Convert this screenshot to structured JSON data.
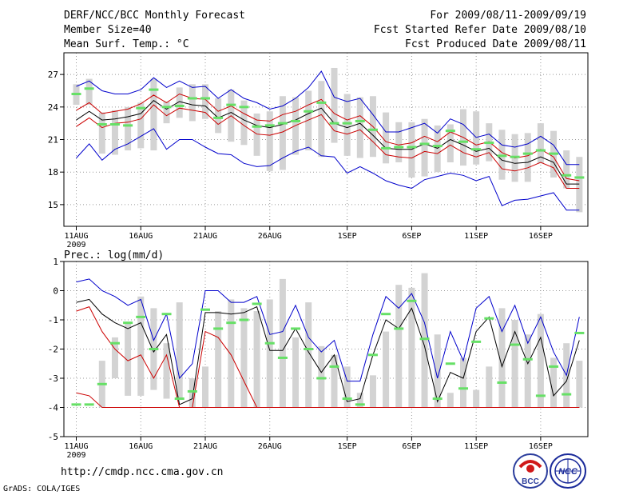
{
  "header": {
    "title": "DERF/NCC/BCC Monthly Forecast",
    "member_size": "Member Size=40",
    "variable": "Mean Surf. Temp.: °C",
    "period": "For 2009/08/11-2009/09/19",
    "started": "Fcst Started Refer Date 2009/08/10",
    "produced": "Fcst Produced Date 2009/08/11"
  },
  "footer": {
    "url": "http://cmdp.ncc.cma.gov.cn",
    "credit": "GrADS: COLA/IGES",
    "logo_left": "BCC",
    "logo_right": "NCC"
  },
  "colors": {
    "box": "#d3d3d3",
    "green": "#66e066",
    "blue": "#0000cc",
    "red": "#cc0000",
    "black": "#000000",
    "grid": "#999999"
  },
  "chart_data": [
    {
      "type": "box",
      "title": "Mean Surf. Temp.: °C",
      "xlabel": "",
      "ylabel": "°C",
      "ylim": [
        13,
        29
      ],
      "yticks": [
        15,
        18,
        21,
        24,
        27
      ],
      "x_ticks": [
        {
          "day": 0,
          "label": "11AUG",
          "sub": "2009"
        },
        {
          "day": 5,
          "label": "16AUG"
        },
        {
          "day": 10,
          "label": "21AUG"
        },
        {
          "day": 15,
          "label": "26AUG"
        },
        {
          "day": 21,
          "label": "1SEP"
        },
        {
          "day": 26,
          "label": "6SEP"
        },
        {
          "day": 31,
          "label": "11SEP"
        },
        {
          "day": 36,
          "label": "16SEP"
        }
      ],
      "box_low": [
        24.2,
        24.2,
        19.7,
        19.6,
        20,
        20.2,
        20,
        22.5,
        23,
        22.7,
        22.9,
        21.6,
        20.8,
        20.5,
        19.5,
        18.1,
        18.2,
        19.6,
        20,
        19.4,
        20.7,
        19.5,
        19.3,
        19.4,
        18.8,
        18.9,
        17.5,
        17.6,
        18,
        18.9,
        18.6,
        18.7,
        19,
        17.3,
        17.1,
        17.1,
        18.8,
        17.5,
        16.5,
        14.3
      ],
      "box_high": [
        26.1,
        26.6,
        23.5,
        23.7,
        24,
        24.4,
        26.6,
        24.5,
        25.8,
        26.1,
        26.1,
        24.8,
        25.6,
        24.6,
        23.4,
        23.6,
        25,
        24.9,
        25.5,
        26.4,
        27.6,
        25.2,
        24.9,
        25,
        23.5,
        22.6,
        22.6,
        22.9,
        22.3,
        22.4,
        23.8,
        23.6,
        22.5,
        21.9,
        21.5,
        21.6,
        22.5,
        21.8,
        20,
        19.4
      ],
      "green": [
        25.2,
        25.7,
        22.4,
        22.4,
        22.3,
        23.9,
        25.6,
        24,
        24.1,
        24.8,
        24.8,
        23,
        24.2,
        24,
        22.2,
        22.3,
        22.5,
        22.7,
        23.6,
        24.4,
        22.5,
        22.5,
        22.7,
        21.9,
        20.2,
        20.3,
        20.3,
        20.6,
        20.4,
        21.8,
        20.8,
        20.1,
        20.7,
        19.5,
        19.4,
        19.7,
        20,
        19.7,
        17.7,
        17.5
      ],
      "series": [
        {
          "name": "max",
          "color": "blue",
          "values": [
            25.9,
            26.4,
            25.5,
            25.2,
            25.2,
            25.6,
            26.7,
            25.8,
            26.4,
            25.8,
            25.9,
            24.8,
            25.6,
            24.8,
            24.4,
            23.8,
            24.1,
            24.8,
            25.8,
            27.3,
            24.9,
            24.5,
            24.8,
            23.3,
            21.7,
            21.7,
            22.1,
            22.5,
            21.6,
            22.9,
            22.4,
            21.2,
            21.5,
            20.5,
            20.3,
            20.6,
            21.3,
            20.5,
            18.7,
            18.7
          ]
        },
        {
          "name": "p90",
          "color": "red",
          "values": [
            23.7,
            24.4,
            23.4,
            23.6,
            23.8,
            24.3,
            25.1,
            24.4,
            25.2,
            24.8,
            24.7,
            23.6,
            24.1,
            23.4,
            22.8,
            22.7,
            23.3,
            23.6,
            24.2,
            24.7,
            23.4,
            22.8,
            23.2,
            22.2,
            20.8,
            20.5,
            20.7,
            21.3,
            20.8,
            21.7,
            21.2,
            20.5,
            20.8,
            19.8,
            19.3,
            19.5,
            20.1,
            19.4,
            17.4,
            17.2
          ]
        },
        {
          "name": "mean",
          "color": "black",
          "values": [
            22.8,
            23.6,
            22.8,
            22.9,
            23.1,
            23.4,
            24.6,
            23.8,
            24.5,
            24.2,
            24.1,
            23,
            23.5,
            22.8,
            22.3,
            22.1,
            22.4,
            22.8,
            23.4,
            23.9,
            22.5,
            22.1,
            22.5,
            21.4,
            20.2,
            20.1,
            20.1,
            20.6,
            20.2,
            21,
            20.5,
            19.9,
            20.2,
            19.1,
            18.8,
            18.9,
            19.4,
            18.9,
            16.9,
            16.9
          ]
        },
        {
          "name": "p10",
          "color": "red",
          "values": [
            22.2,
            23,
            22.1,
            22.5,
            22.6,
            22.9,
            24.2,
            23.2,
            23.9,
            23.7,
            23.5,
            22.4,
            23.2,
            22.3,
            21.5,
            21.4,
            21.7,
            22.3,
            22.8,
            23.3,
            21.8,
            21.5,
            21.9,
            20.8,
            19.6,
            19.4,
            19.3,
            19.9,
            19.7,
            20.5,
            19.8,
            19.4,
            19.8,
            18.3,
            18.1,
            18.4,
            18.9,
            18.4,
            16.5,
            16.5
          ]
        },
        {
          "name": "min",
          "color": "blue",
          "values": [
            19.3,
            20.6,
            19.1,
            20.1,
            20.6,
            21.3,
            22,
            20.1,
            21,
            21,
            20.3,
            19.7,
            19.6,
            18.8,
            18.5,
            18.6,
            19.3,
            19.9,
            20.3,
            19.5,
            19.4,
            17.9,
            18.5,
            17.9,
            17.2,
            16.8,
            16.5,
            17.3,
            17.6,
            17.9,
            17.7,
            17.2,
            17.6,
            14.9,
            15.4,
            15.5,
            15.8,
            16.1,
            14.5,
            14.5
          ]
        }
      ]
    },
    {
      "type": "box",
      "title": "Prec.: log(mm/d)",
      "xlabel": "",
      "ylabel": "log(mm/d)",
      "ylim": [
        -5,
        1
      ],
      "yticks": [
        -5,
        -4,
        -3,
        -2,
        -1,
        0,
        1
      ],
      "x_ticks": [
        {
          "day": 0,
          "label": "11AUG",
          "sub": "2009"
        },
        {
          "day": 5,
          "label": "16AUG"
        },
        {
          "day": 10,
          "label": "21AUG"
        },
        {
          "day": 15,
          "label": "26AUG"
        },
        {
          "day": 21,
          "label": "1SEP"
        },
        {
          "day": 26,
          "label": "6SEP"
        },
        {
          "day": 31,
          "label": "11SEP"
        },
        {
          "day": 36,
          "label": "16SEP"
        }
      ],
      "box_low": [
        -4,
        -4,
        -4,
        -3,
        -3.6,
        -3.6,
        -3.4,
        -3.7,
        -3.7,
        -4,
        -4,
        -4,
        -4,
        -4,
        -4,
        -4,
        -4,
        -4,
        -4,
        -4,
        -4,
        -4,
        -4,
        -4,
        -4,
        -4,
        -4,
        -4,
        -4,
        -4,
        -4,
        -4,
        -4,
        -4,
        -4,
        -4,
        -4,
        -4,
        -4,
        -4
      ],
      "box_high": [
        -4,
        -4,
        -2.4,
        -1.6,
        -1.1,
        -0.2,
        -0.6,
        -1.8,
        -0.4,
        -3,
        -2.6,
        -0.7,
        -0.3,
        -0.6,
        -0.7,
        -0.3,
        0.4,
        -1.6,
        -0.4,
        -1.9,
        -2.2,
        -2.6,
        -3.5,
        -2.9,
        -1.4,
        0.2,
        0.1,
        0.6,
        -1.5,
        -3.5,
        -2.3,
        -3.4,
        -2.6,
        -0.6,
        -1,
        -1.5,
        -0.8,
        -2.3,
        -1.8,
        -2.4
      ],
      "green": [
        -3.9,
        -3.9,
        -3.2,
        -1.8,
        -1.1,
        -0.9,
        -2,
        -0.8,
        -3.7,
        -3.45,
        -0.65,
        -1.3,
        -1.1,
        -1,
        -0.45,
        -1.8,
        -2.3,
        -1.3,
        -2,
        -3,
        -2.6,
        -3.7,
        -3.9,
        -2.2,
        -0.8,
        -1.3,
        -0.35,
        -1.65,
        -3.7,
        -2.5,
        -3.35,
        -1.75,
        -0.95,
        -3.15,
        -1.85,
        -2.35,
        -3.6,
        -2.6,
        -3.55,
        -1.45
      ],
      "series": [
        {
          "name": "max",
          "color": "blue",
          "values": [
            0.3,
            0.4,
            0,
            -0.2,
            -0.5,
            -0.3,
            -1.7,
            -0.8,
            -3,
            -2.5,
            0,
            0,
            -0.4,
            -0.4,
            -0.2,
            -1.5,
            -1.4,
            -0.5,
            -1.6,
            -2.1,
            -1.7,
            -3.1,
            -3.1,
            -1.5,
            -0.2,
            -0.6,
            -0.1,
            -1.1,
            -3,
            -1.4,
            -2.4,
            -0.6,
            -0.2,
            -1.4,
            -0.5,
            -1.8,
            -0.9,
            -2.1,
            -2.9,
            -0.9
          ]
        },
        {
          "name": "mean",
          "color": "black",
          "values": [
            -0.4,
            -0.3,
            -0.8,
            -1.1,
            -1.3,
            -1.1,
            -2.1,
            -1.5,
            -3.9,
            -3.7,
            -0.75,
            -0.75,
            -0.8,
            -0.75,
            -0.55,
            -2.05,
            -2.05,
            -1.3,
            -2.1,
            -2.8,
            -2.2,
            -3.8,
            -3.7,
            -2.2,
            -1,
            -1.3,
            -0.6,
            -1.9,
            -3.8,
            -2.8,
            -3,
            -1.4,
            -0.9,
            -2.6,
            -1.4,
            -2.5,
            -1.6,
            -3.6,
            -3.1,
            -1.7
          ]
        },
        {
          "name": "p90",
          "color": "red",
          "values": [
            -0.7,
            -0.55,
            -1.4,
            -2,
            -2.4,
            -2.2,
            -3,
            -2.2,
            -4,
            -4,
            -1.4,
            -1.6,
            -2.2,
            -3.1,
            -4,
            -4,
            -4,
            -4,
            -4,
            -4,
            -4,
            -4,
            -4,
            -4,
            -4,
            -4,
            -4,
            -4,
            -4,
            -4,
            -4,
            -4,
            -4,
            -4,
            -4,
            -4,
            -4,
            -4,
            -4,
            -4
          ]
        },
        {
          "name": "p10",
          "color": "red",
          "values": [
            -3.5,
            -3.6,
            -4,
            -4,
            -4,
            -4,
            -4,
            -4,
            -4,
            -4,
            -4,
            -4,
            -4,
            -4,
            -4,
            -4,
            -4,
            -4,
            -4,
            -4,
            -4,
            -4,
            -4,
            -4,
            -4,
            -4,
            -4,
            -4,
            -4,
            -4,
            -4,
            -4,
            -4,
            -4,
            -4,
            -4,
            -4,
            -4,
            -4,
            -4
          ]
        }
      ]
    }
  ]
}
